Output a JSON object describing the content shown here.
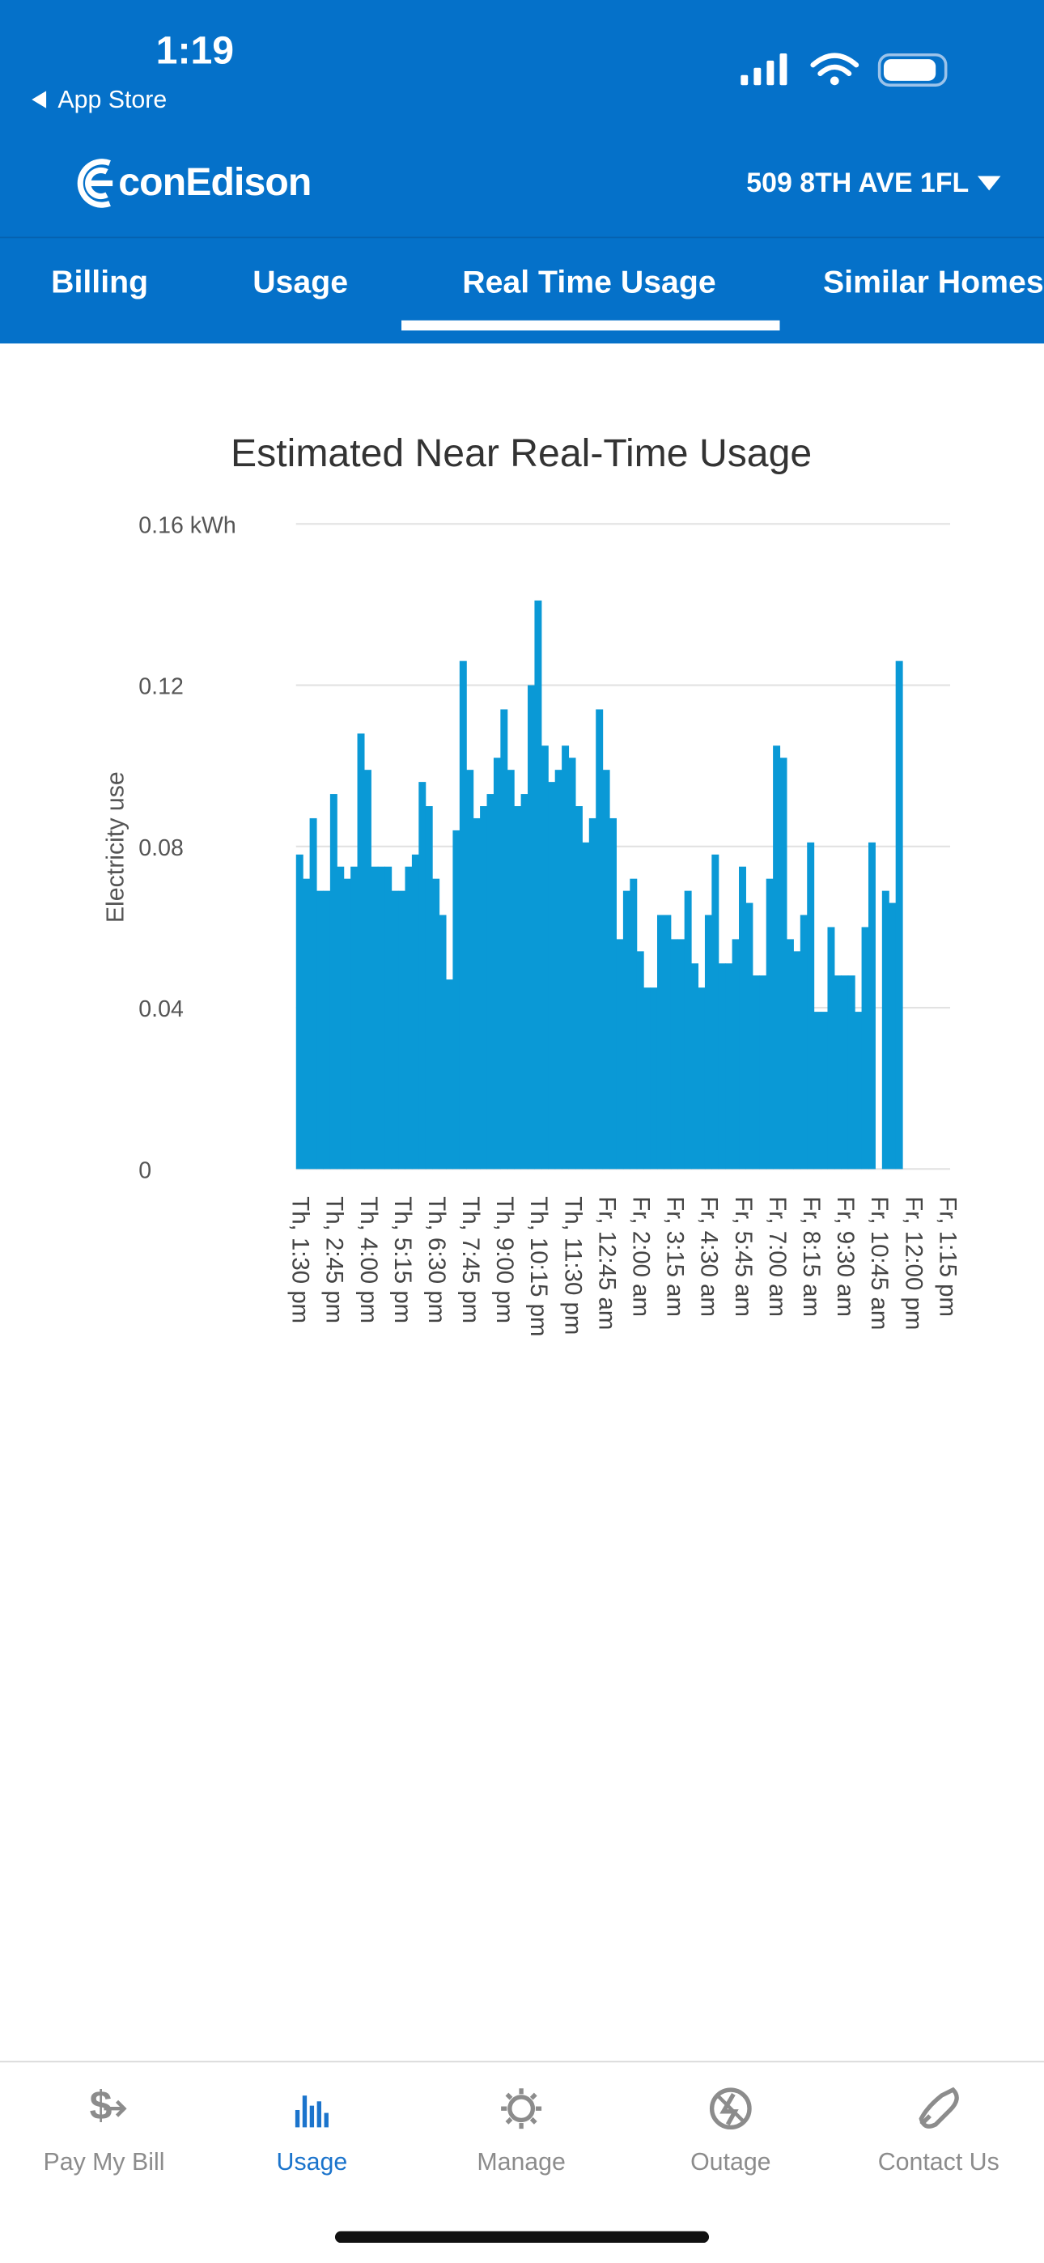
{
  "status_bar": {
    "time": "1:19",
    "back": "App Store"
  },
  "header": {
    "brand": "conEdison",
    "address": "509 8TH AVE 1FL"
  },
  "tabs": [
    "Billing",
    "Usage",
    "Real Time Usage",
    "Similar Homes"
  ],
  "chart_data": {
    "type": "bar",
    "title": "Estimated Near Real-Time Usage",
    "y_label": "Electricity use",
    "categories": [
      "Th, 1:30 pm",
      null,
      null,
      null,
      null,
      "Th, 2:45 pm",
      null,
      null,
      null,
      null,
      "Th, 4:00 pm",
      null,
      null,
      null,
      null,
      "Th, 5:15 pm",
      null,
      null,
      null,
      null,
      "Th, 6:30 pm",
      null,
      null,
      null,
      null,
      "Th, 7:45 pm",
      null,
      null,
      null,
      null,
      "Th, 9:00 pm",
      null,
      null,
      null,
      null,
      "Th, 10:15 pm",
      null,
      null,
      null,
      null,
      "Th, 11:30 pm",
      null,
      null,
      null,
      null,
      "Fr, 12:45 am",
      null,
      null,
      null,
      null,
      "Fr, 2:00 am",
      null,
      null,
      null,
      null,
      "Fr, 3:15 am",
      null,
      null,
      null,
      null,
      "Fr, 4:30 am",
      null,
      null,
      null,
      null,
      "Fr, 5:45 am",
      null,
      null,
      null,
      null,
      "Fr, 7:00 am",
      null,
      null,
      null,
      null,
      "Fr, 8:15 am",
      null,
      null,
      null,
      null,
      "Fr, 9:30 am",
      null,
      null,
      null,
      null,
      "Fr, 10:45 am",
      null,
      null,
      null,
      null,
      "Fr, 12:00 pm",
      null,
      null,
      null,
      null,
      "Fr, 1:15 pm"
    ],
    "values": [
      0.078,
      0.072,
      0.087,
      0.069,
      0.069,
      0.093,
      0.075,
      0.072,
      0.075,
      0.108,
      0.099,
      0.075,
      0.075,
      0.075,
      0.069,
      0.069,
      0.075,
      0.078,
      0.096,
      0.09,
      0.072,
      0.063,
      0.047,
      0.084,
      0.126,
      0.099,
      0.087,
      0.09,
      0.093,
      0.102,
      0.114,
      0.099,
      0.09,
      0.093,
      0.12,
      0.141,
      0.105,
      0.096,
      0.099,
      0.105,
      0.102,
      0.09,
      0.081,
      0.087,
      0.114,
      0.099,
      0.087,
      0.057,
      0.069,
      0.072,
      0.054,
      0.045,
      0.045,
      0.063,
      0.063,
      0.057,
      0.057,
      0.069,
      0.051,
      0.045,
      0.063,
      0.078,
      0.051,
      0.051,
      0.057,
      0.075,
      0.066,
      0.048,
      0.048,
      0.072,
      0.105,
      0.102,
      0.057,
      0.054,
      0.063,
      0.081,
      0.039,
      0.039,
      0.06,
      0.048,
      0.048,
      0.048,
      0.039,
      0.06,
      0.081,
      null,
      0.069,
      0.066,
      0.126,
      null,
      null,
      null,
      null,
      null,
      null,
      null
    ],
    "color": "#0a99d6",
    "ylim": [
      0,
      0.16
    ],
    "yticks": [
      0,
      0.04,
      0.08,
      0.12,
      {
        "value": 0.16,
        "label": "0.16 kWh"
      }
    ],
    "grid": true
  },
  "nav": [
    {
      "label": "Pay My Bill",
      "active": false
    },
    {
      "label": "Usage",
      "active": true
    },
    {
      "label": "Manage",
      "active": false
    },
    {
      "label": "Outage",
      "active": false
    },
    {
      "label": "Contact Us",
      "active": false
    }
  ]
}
